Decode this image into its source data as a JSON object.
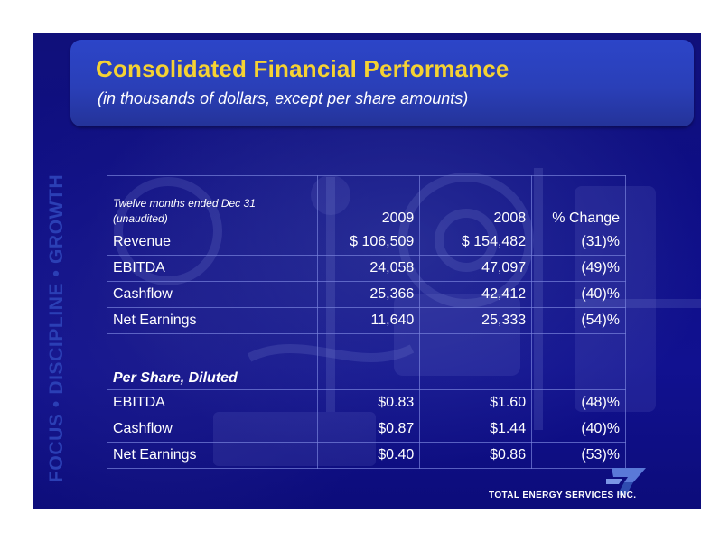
{
  "slide": {
    "title": "Consolidated Financial Performance",
    "subtitle": "(in thousands of dollars, except per share amounts)",
    "side_text": "FOCUS • DISCIPLINE • GROWTH",
    "company": "TOTAL ENERGY SERVICES INC."
  },
  "table": {
    "period_line1": "Twelve months ended Dec 31",
    "period_line2": "(unaudited)",
    "col_2009": "2009",
    "col_2008": "2008",
    "col_change": "% Change",
    "rows": [
      {
        "label": "Revenue",
        "v2009": "$ 106,509",
        "v2008": "$ 154,482",
        "change": "(31)%"
      },
      {
        "label": "EBITDA",
        "v2009": "24,058",
        "v2008": "47,097",
        "change": "(49)%"
      },
      {
        "label": "Cashflow",
        "v2009": "25,366",
        "v2008": "42,412",
        "change": "(40)%"
      },
      {
        "label": "Net Earnings",
        "v2009": "11,640",
        "v2008": "25,333",
        "change": "(54)%"
      }
    ],
    "per_share_heading": "Per Share, Diluted",
    "per_share_rows": [
      {
        "label": "EBITDA",
        "v2009": "$0.83",
        "v2008": "$1.60",
        "change": "(48)%"
      },
      {
        "label": "Cashflow",
        "v2009": "$0.87",
        "v2008": "$1.44",
        "change": "(40)%"
      },
      {
        "label": "Net Earnings",
        "v2009": "$0.40",
        "v2008": "$0.86",
        "change": "(53)%"
      }
    ]
  },
  "colors": {
    "title": "#f5d233",
    "side_text": "#2b3fb5",
    "background": "#10107a",
    "title_box": "#2a3fb8"
  }
}
